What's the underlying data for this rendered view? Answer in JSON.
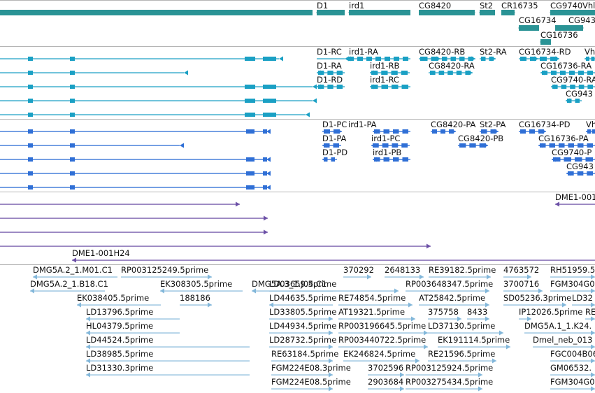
{
  "colors": {
    "gene": "#2a9395",
    "transcript": "#1aa0c4",
    "cds": "#2f6fd6",
    "cdna": "#6b4fa6",
    "est": "#82b7da",
    "separator": "#b5b5b5"
  },
  "tracks": [
    {
      "id": "genes",
      "name": "gene-track",
      "color": "gene",
      "labels": [
        "D1",
        "ird1",
        "CG8420",
        "St2",
        "CR16735",
        "CG9740",
        "Vhl",
        "CG16734",
        "CG943",
        "CG16736"
      ]
    },
    {
      "id": "transcripts",
      "name": "transcript-track",
      "color": "transcript",
      "labels": [
        "D1-RC",
        "ird1-RA",
        "CG8420-RB",
        "St2-RA",
        "CG16734-RD",
        "Vh",
        "D1-RA",
        "ird1-RB",
        "CG8420-RA",
        "CG16736-RA",
        "D1-RD",
        "ird1-RC",
        "CG9740-RA",
        "CG943"
      ]
    },
    {
      "id": "proteins",
      "name": "cds-track",
      "color": "cds",
      "labels": [
        "D1-PC",
        "ird1-PA",
        "CG8420-PA",
        "St2-PA",
        "CG16734-PD",
        "Vh",
        "D1-PA",
        "ird1-PC",
        "CG8420-PB",
        "CG16736-PA",
        "D1-PD",
        "ird1-PB",
        "CG9740-P",
        "CG943"
      ]
    },
    {
      "id": "cdna",
      "name": "cdna-track",
      "color": "cdna",
      "labels": [
        "DME1-001",
        "DME1-001H24"
      ]
    },
    {
      "id": "est",
      "name": "est-track",
      "color": "est",
      "labels": [
        "DMG5A.2_1.M01.C1",
        "RP003125249.5prime",
        "370292",
        "2648133",
        "RE39182.5prime",
        "4763572",
        "RH51959.5",
        "DMG5A.2_1.B18.C1",
        "EK308305.5prime",
        "DMG5A.3_1.J04.C1",
        "LD03659.5prime",
        "RP003648347.5prime",
        "3700716",
        "FGM304G0",
        "EK038405.5prime",
        "188186",
        "LD44635.5prime",
        "RE74854.5prime",
        "AT25842.5prime",
        "SD05236.3prime",
        "LD32",
        "LD13796.5prime",
        "LD33805.5prime",
        "AT19321.5prime",
        "375758",
        "8433",
        "IP12026.5prime",
        "RE",
        "HL04379.5prime",
        "LD44934.5prime",
        "RP003196645.5prime",
        "LD37130.5prime",
        "DMG5A.1_1.K24.",
        "LD44524.5prime",
        "LD28732.5prime",
        "RP003440722.5prime",
        "EK191114.5prime",
        "Dmel_neb_013",
        "LD38985.5prime",
        "RE63184.5prime",
        "EK246824.5prime",
        "RE21596.5prime",
        "FGC004B06",
        "LD31330.3prime",
        "FGM224E08.3prime",
        "3702596",
        "RP003125924.5prime",
        "GM06532.",
        "FGM224E08.5prime",
        "2903684",
        "RP003275434.5prime",
        "FGM304G0"
      ]
    }
  ]
}
